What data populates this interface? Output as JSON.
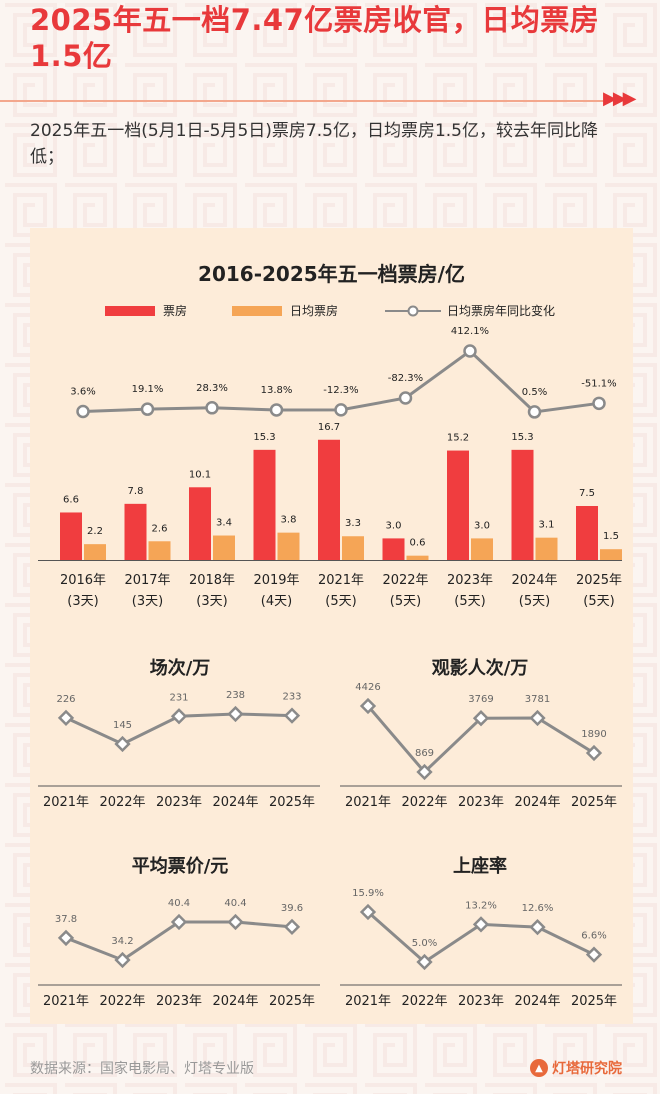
{
  "title": "2025年五一档7.47亿票房收官，日均票房1.5亿",
  "summary": "2025年五一档(5月1日-5月5日)票房7.5亿，日均票房1.5亿，较去年同比降低；",
  "colors": {
    "box": "#f03d3f",
    "daily": "#f5a556",
    "line": "#8a8a8a",
    "accent": "#e8393b"
  },
  "chart_data": [
    {
      "type": "bar",
      "title": "2016-2025年五一档票房/亿",
      "categories": [
        "2016年\n(3天)",
        "2017年\n(3天)",
        "2018年\n(3天)",
        "2019年\n(4天)",
        "2021年\n(5天)",
        "2022年\n(5天)",
        "2023年\n(5天)",
        "2024年\n(5天)",
        "2025年\n(5天)"
      ],
      "series": [
        {
          "name": "票房",
          "values": [
            6.6,
            7.8,
            10.1,
            15.3,
            16.7,
            3.0,
            15.2,
            15.3,
            7.5
          ]
        },
        {
          "name": "日均票房",
          "values": [
            2.2,
            2.6,
            3.4,
            3.8,
            3.3,
            0.6,
            3.0,
            3.1,
            1.5
          ]
        },
        {
          "name": "日均票房年同比变化",
          "type": "line",
          "values": [
            3.6,
            19.1,
            28.3,
            13.8,
            -12.3,
            -82.3,
            412.1,
            0.5,
            -51.1
          ],
          "labels": [
            "3.6%",
            "19.1%",
            "28.3%",
            "13.8%",
            "-12.3%",
            "-82.3%",
            "412.1%",
            "0.5%",
            "-51.1%"
          ]
        }
      ],
      "legend_position": "top"
    },
    {
      "type": "line",
      "title": "场次/万",
      "categories": [
        "2021年",
        "2022年",
        "2023年",
        "2024年",
        "2025年"
      ],
      "values": [
        226,
        145,
        231,
        238,
        233
      ],
      "labels": [
        "226",
        "145",
        "231",
        "238",
        "233"
      ]
    },
    {
      "type": "line",
      "title": "观影人次/万",
      "categories": [
        "2021年",
        "2022年",
        "2023年",
        "2024年",
        "2025年"
      ],
      "values": [
        4426,
        869,
        3769,
        3781,
        1890
      ],
      "labels": [
        "4426",
        "869",
        "3769",
        "3781",
        "1890"
      ]
    },
    {
      "type": "line",
      "title": "平均票价/元",
      "categories": [
        "2021年",
        "2022年",
        "2023年",
        "2024年",
        "2025年"
      ],
      "values": [
        37.8,
        34.2,
        40.4,
        40.4,
        39.6
      ],
      "labels": [
        "37.8",
        "34.2",
        "40.4",
        "40.4",
        "39.6"
      ]
    },
    {
      "type": "line",
      "title": "上座率",
      "categories": [
        "2021年",
        "2022年",
        "2023年",
        "2024年",
        "2025年"
      ],
      "values": [
        15.9,
        5.0,
        13.2,
        12.6,
        6.6
      ],
      "labels": [
        "15.9%",
        "5.0%",
        "13.2%",
        "12.6%",
        "6.6%"
      ]
    }
  ],
  "source": "数据来源：国家电影局、灯塔专业版",
  "logo": {
    "text": "灯塔研究院",
    "icon": "lighthouse-icon"
  }
}
